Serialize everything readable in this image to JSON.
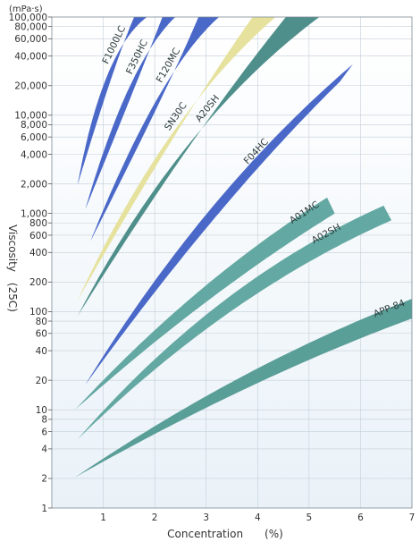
{
  "chart_data": {
    "type": "area",
    "title": "",
    "xlabel": "Concentration　　(%)",
    "ylabel": "Viscosity　(25C)",
    "y_unit": "(mPa·s)",
    "xlim": [
      0,
      7
    ],
    "ylim": [
      1,
      100000
    ],
    "y_scale": "log",
    "grid": true,
    "x_ticks": [
      1,
      2,
      3,
      4,
      5,
      6,
      7
    ],
    "y_ticks": [
      {
        "v": 1,
        "label": "1"
      },
      {
        "v": 2,
        "label": "2"
      },
      {
        "v": 4,
        "label": "4"
      },
      {
        "v": 6,
        "label": "6"
      },
      {
        "v": 8,
        "label": "8"
      },
      {
        "v": 10,
        "label": "10"
      },
      {
        "v": 20,
        "label": "20"
      },
      {
        "v": 40,
        "label": "40"
      },
      {
        "v": 60,
        "label": "60"
      },
      {
        "v": 80,
        "label": "80"
      },
      {
        "v": 100,
        "label": "100"
      },
      {
        "v": 200,
        "label": "200"
      },
      {
        "v": 400,
        "label": "400"
      },
      {
        "v": 600,
        "label": "600"
      },
      {
        "v": 800,
        "label": "800"
      },
      {
        "v": 1000,
        "label": "1,000"
      },
      {
        "v": 2000,
        "label": "2,000"
      },
      {
        "v": 4000,
        "label": "4,000"
      },
      {
        "v": 6000,
        "label": "6,000"
      },
      {
        "v": 8000,
        "label": "8,000"
      },
      {
        "v": 10000,
        "label": "10,000"
      },
      {
        "v": 20000,
        "label": "20,000"
      },
      {
        "v": 40000,
        "label": "40,000"
      },
      {
        "v": 60000,
        "label": "60,000"
      },
      {
        "v": 80000,
        "label": "80,000"
      },
      {
        "v": 100000,
        "label": "100,000"
      }
    ],
    "series": [
      {
        "name": "F1000LC",
        "color": "#4a68c8",
        "start": [
          0.5,
          1950
        ],
        "ctrl": [
          1.1,
          40000
        ],
        "end_lo": [
          1.6,
          100000
        ],
        "end_hi": [
          1.85,
          100000
        ],
        "label_at": 1.35
      },
      {
        "name": "F350HC",
        "color": "#4a68c8",
        "start": [
          0.65,
          1100
        ],
        "ctrl": [
          1.6,
          30000
        ],
        "end_lo": [
          2.15,
          100000
        ],
        "end_hi": [
          2.4,
          100000
        ],
        "label_at": 1.8
      },
      {
        "name": "F120MC",
        "color": "#4a68c8",
        "start": [
          0.75,
          520
        ],
        "ctrl": [
          2.2,
          25000
        ],
        "end_lo": [
          2.85,
          100000
        ],
        "end_hi": [
          3.25,
          100000
        ],
        "label_at": 2.4
      },
      {
        "name": "SN30C",
        "color": "#e6e29e",
        "start": [
          0.5,
          130
        ],
        "ctrl": [
          2.3,
          9000
        ],
        "end_lo": [
          3.9,
          100000
        ],
        "end_hi": [
          4.35,
          100000
        ],
        "label_at": 2.55
      },
      {
        "name": "A20SH",
        "color": "#4f8f8b",
        "start": [
          0.5,
          90
        ],
        "ctrl": [
          2.6,
          7500
        ],
        "end_lo": [
          4.55,
          100000
        ],
        "end_hi": [
          5.2,
          100000
        ],
        "label_at": 3.15
      },
      {
        "name": "F04HC",
        "color": "#4a68c8",
        "start": [
          0.65,
          18
        ],
        "ctrl": [
          3.1,
          1500
        ],
        "end_lo": [
          5.6,
          22000
        ],
        "end_hi": [
          5.85,
          33000
        ],
        "label_at": 4.1
      },
      {
        "name": "A01MC",
        "color": "#63a8a2",
        "start": [
          0.45,
          10
        ],
        "ctrl": [
          2.9,
          180
        ],
        "end_lo": [
          5.5,
          1000
        ],
        "end_hi": [
          5.35,
          1450
        ],
        "label_at": 5.0
      },
      {
        "name": "A02SH",
        "color": "#63a8a2",
        "start": [
          0.5,
          5
        ],
        "ctrl": [
          3.3,
          180
        ],
        "end_lo": [
          6.6,
          850
        ],
        "end_hi": [
          6.45,
          1200
        ],
        "label_at": 5.4
      },
      {
        "name": "APP-84",
        "color": "#5a9e98",
        "start": [
          0.45,
          2.05
        ],
        "ctrl": [
          3.8,
          25
        ],
        "end_lo": [
          7.0,
          85
        ],
        "end_hi": [
          7.0,
          135
        ],
        "label_at": 6.6
      }
    ]
  }
}
